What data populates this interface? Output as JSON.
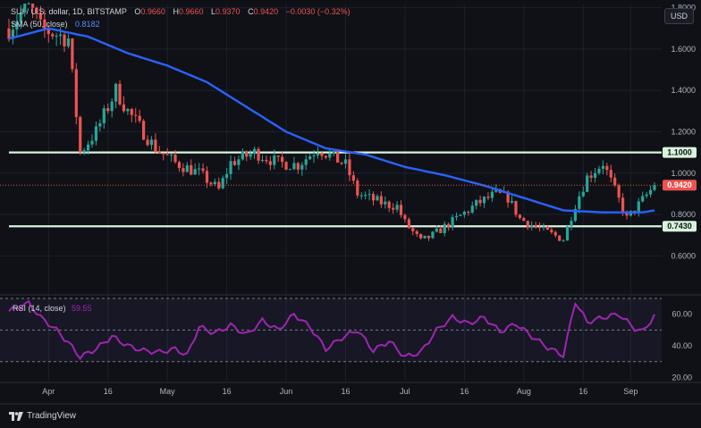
{
  "header": {
    "symbol": "SUI / U.S. dollar, 1D, BITSTAMP",
    "open_label": "O",
    "open": "0.9660",
    "high_label": "H",
    "high": "0.9660",
    "low_label": "L",
    "low": "0.9370",
    "close_label": "C",
    "close": "0.9420",
    "change": "−0.0030 (−0.32%)",
    "sma_label": "SMA (50, close)",
    "sma_value": "0.8182",
    "currency": "USD"
  },
  "rsi_legend": {
    "label": "RSI (14, close)",
    "value": "59.55"
  },
  "brand": "TradingView",
  "colors": {
    "up": "#26a69a",
    "down": "#ef5350",
    "sma": "#2962ff",
    "level": "#d8f3dc",
    "rsi": "#9c27b0",
    "background": "#0f1117"
  },
  "chart_data": [
    {
      "type": "candlestick",
      "title": "SUI / U.S. dollar, 1D, BITSTAMP",
      "ylim": [
        0.42,
        1.82
      ],
      "y_ticks": [
        "1.8000",
        "1.6000",
        "1.4000",
        "1.2000",
        "1.0000",
        "0.8000",
        "0.6000"
      ],
      "x_ticks": [
        "Apr",
        "16",
        "May",
        "16",
        "Jun",
        "16",
        "Jul",
        "16",
        "Aug",
        "16",
        "Sep"
      ],
      "horizontal_levels": [
        {
          "label": "1.1000",
          "value": 1.1
        },
        {
          "label": "0.7430",
          "value": 0.743
        }
      ],
      "last_price": {
        "label": "0.9420",
        "value": 0.942
      },
      "sma_series": {
        "name": "SMA (50, close)",
        "x": [
          0,
          10,
          20,
          30,
          40,
          50,
          60,
          70,
          80,
          90,
          100,
          110,
          120,
          130,
          140,
          150,
          160,
          163
        ],
        "y": [
          1.65,
          1.7,
          1.66,
          1.58,
          1.52,
          1.44,
          1.32,
          1.2,
          1.12,
          1.09,
          1.03,
          0.99,
          0.94,
          0.88,
          0.82,
          0.81,
          0.81,
          0.82
        ]
      },
      "price_path": {
        "x": [
          0,
          5,
          8,
          15,
          18,
          22,
          27,
          30,
          37,
          42,
          48,
          53,
          56,
          62,
          68,
          73,
          78,
          85,
          88,
          95,
          98,
          100,
          104,
          107,
          113,
          118,
          123,
          126,
          129,
          134,
          140,
          143,
          146,
          150,
          156,
          160,
          163
        ],
        "y": [
          1.7,
          1.82,
          1.7,
          1.65,
          1.1,
          1.2,
          1.4,
          1.3,
          1.12,
          1.05,
          1.0,
          0.92,
          1.05,
          1.1,
          1.05,
          1.04,
          1.12,
          1.04,
          0.9,
          0.85,
          0.84,
          0.76,
          0.67,
          0.7,
          0.78,
          0.85,
          0.9,
          0.88,
          0.78,
          0.73,
          0.68,
          0.85,
          0.98,
          1.05,
          0.78,
          0.87,
          0.94
        ]
      }
    },
    {
      "type": "line",
      "title": "RSI (14, close)",
      "ylim": [
        18,
        70
      ],
      "y_ticks": [
        "60.00",
        "40.00",
        "20.00"
      ],
      "bands": [
        70,
        50,
        30
      ],
      "series": [
        {
          "name": "RSI (14, close)",
          "x": [
            0,
            5,
            8,
            12,
            15,
            18,
            22,
            26,
            30,
            34,
            38,
            42,
            45,
            48,
            52,
            56,
            60,
            64,
            68,
            72,
            76,
            80,
            84,
            88,
            92,
            96,
            100,
            104,
            108,
            112,
            116,
            120,
            124,
            128,
            132,
            136,
            140,
            143,
            146,
            150,
            154,
            158,
            160,
            163
          ],
          "y": [
            62,
            67,
            58,
            50,
            42,
            33,
            38,
            46,
            40,
            37,
            36,
            38,
            34,
            52,
            48,
            53,
            47,
            56,
            50,
            60,
            52,
            38,
            45,
            50,
            37,
            43,
            33,
            36,
            50,
            58,
            54,
            58,
            49,
            54,
            46,
            39,
            34,
            68,
            55,
            58,
            60,
            51,
            49,
            59
          ]
        }
      ]
    }
  ]
}
